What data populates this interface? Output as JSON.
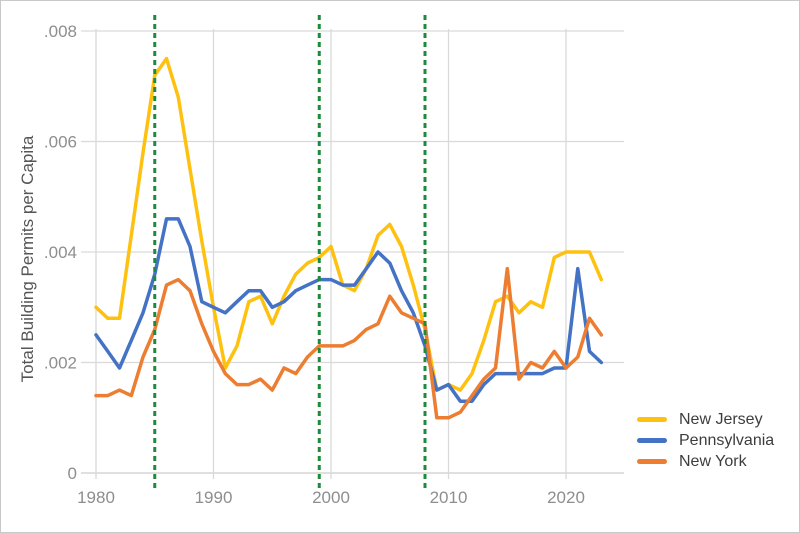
{
  "chart_data": {
    "type": "line",
    "title": "",
    "xlabel": "",
    "ylabel": "Total Building Permits per Capita",
    "x": [
      1980,
      1981,
      1982,
      1983,
      1984,
      1985,
      1986,
      1987,
      1988,
      1989,
      1990,
      1991,
      1992,
      1993,
      1994,
      1995,
      1996,
      1997,
      1998,
      1999,
      2000,
      2001,
      2002,
      2003,
      2004,
      2005,
      2006,
      2007,
      2008,
      2009,
      2010,
      2011,
      2012,
      2013,
      2014,
      2015,
      2016,
      2017,
      2018,
      2019,
      2020,
      2021,
      2022,
      2023
    ],
    "series": [
      {
        "name": "New Jersey",
        "color": "#FFC110",
        "values": [
          0.003,
          0.0028,
          0.0028,
          0.0043,
          0.0058,
          0.0072,
          0.0075,
          0.0068,
          0.0055,
          0.0042,
          0.003,
          0.0019,
          0.0023,
          0.0031,
          0.0032,
          0.0027,
          0.0032,
          0.0036,
          0.0038,
          0.0039,
          0.0041,
          0.0034,
          0.0033,
          0.0037,
          0.0043,
          0.0045,
          0.0041,
          0.0034,
          0.0026,
          0.0015,
          0.0016,
          0.0015,
          0.0018,
          0.0024,
          0.0031,
          0.0032,
          0.0029,
          0.0031,
          0.003,
          0.0039,
          0.004,
          0.004,
          0.004,
          0.0035
        ]
      },
      {
        "name": "Pennsylvania",
        "color": "#4472C4",
        "values": [
          0.0025,
          0.0022,
          0.0019,
          0.0024,
          0.0029,
          0.0036,
          0.0046,
          0.0046,
          0.0041,
          0.0031,
          0.003,
          0.0029,
          0.0031,
          0.0033,
          0.0033,
          0.003,
          0.0031,
          0.0033,
          0.0034,
          0.0035,
          0.0035,
          0.0034,
          0.0034,
          0.0037,
          0.004,
          0.0038,
          0.0033,
          0.0029,
          0.0023,
          0.0015,
          0.0016,
          0.0013,
          0.0013,
          0.0016,
          0.0018,
          0.0018,
          0.0018,
          0.0018,
          0.0018,
          0.0019,
          0.0019,
          0.0037,
          0.0022,
          0.002
        ]
      },
      {
        "name": "New York",
        "color": "#ED7D31",
        "values": [
          0.0014,
          0.0014,
          0.0015,
          0.0014,
          0.0021,
          0.0026,
          0.0034,
          0.0035,
          0.0033,
          0.0027,
          0.0022,
          0.0018,
          0.0016,
          0.0016,
          0.0017,
          0.0015,
          0.0019,
          0.0018,
          0.0021,
          0.0023,
          0.0023,
          0.0023,
          0.0024,
          0.0026,
          0.0027,
          0.0032,
          0.0029,
          0.0028,
          0.0027,
          0.001,
          0.001,
          0.0011,
          0.0014,
          0.0017,
          0.0019,
          0.0037,
          0.0017,
          0.002,
          0.0019,
          0.0022,
          0.0019,
          0.0021,
          0.0028,
          0.0025
        ]
      }
    ],
    "vlines": {
      "years": [
        1985,
        1999,
        2008
      ],
      "color": "#1E8A3C",
      "style": "dotted"
    },
    "y_ticks": {
      "values": [
        0,
        0.002,
        0.004,
        0.006,
        0.008
      ],
      "labels": [
        "0",
        ".002",
        ".004",
        ".006",
        ".008"
      ]
    },
    "x_ticks": {
      "values": [
        1980,
        1990,
        2000,
        2010,
        2020
      ],
      "labels": [
        "1980",
        "1990",
        "2000",
        "2010",
        "2020"
      ]
    },
    "ylim": [
      0,
      0.008
    ],
    "xlim": [
      1979,
      2025
    ],
    "grid": true,
    "legend_position": "lower right"
  },
  "style_colors": {
    "gridline": "#d9d9d9",
    "axis_line": "#cdcdcd",
    "tick_label": "#8e8e8e",
    "axis_title": "#555555",
    "legend_text": "#3d3d3d"
  }
}
